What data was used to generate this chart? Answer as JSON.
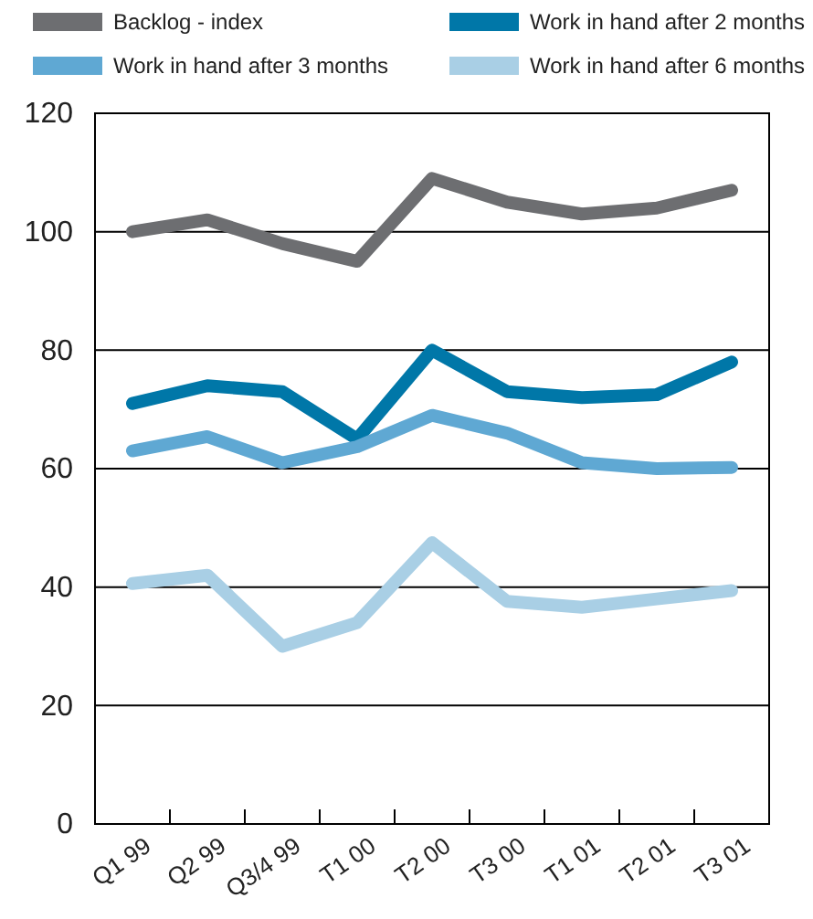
{
  "chart_data": {
    "type": "line",
    "categories": [
      "Q1 99",
      "Q2 99",
      "Q3/4 99",
      "T1 00",
      "T2 00",
      "T3 00",
      "T1 01",
      "T2 01",
      "T3 01"
    ],
    "series": [
      {
        "name": "Backlog - index",
        "color": "#6d6e71",
        "values": [
          100,
          102,
          98,
          95,
          109,
          105,
          103,
          104,
          107
        ]
      },
      {
        "name": "Work in hand after 2 months",
        "color": "#0077a8",
        "values": [
          71,
          74,
          73,
          65,
          80,
          73,
          72,
          72.5,
          78
        ]
      },
      {
        "name": "Work in hand after 3 months",
        "color": "#5fa8d3",
        "values": [
          63,
          65.4,
          61,
          63.7,
          69,
          66,
          61,
          60,
          60.2
        ]
      },
      {
        "name": "Work in hand after 6 months",
        "color": "#a9cfe5",
        "values": [
          40.6,
          42,
          30,
          34,
          47.5,
          37.6,
          36.6,
          38,
          39.4
        ]
      }
    ],
    "ylim": [
      0,
      120
    ],
    "yticks": [
      0,
      20,
      40,
      60,
      80,
      100,
      120
    ],
    "grid": "y",
    "legend": "top",
    "marker": "none",
    "line_style": "solid"
  }
}
